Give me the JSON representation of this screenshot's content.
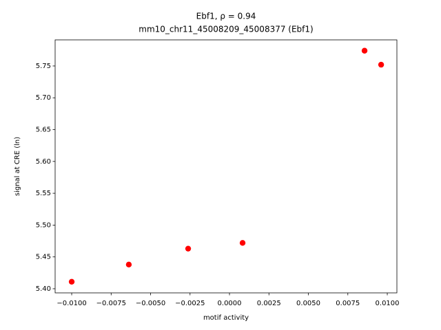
{
  "chart_data": {
    "type": "scatter",
    "title": [
      "Ebf1, ρ = 0.94",
      "mm10_chr11_45008209_45008377 (Ebf1)"
    ],
    "x_label": "motif activity",
    "y_label": "signal at CRE (ln)",
    "color": "#ff0000",
    "x": [
      -0.01,
      -0.00638,
      -0.00262,
      0.00083,
      0.00856,
      0.00961
    ],
    "y": [
      5.411,
      5.438,
      5.463,
      5.472,
      5.774,
      5.752
    ],
    "xlim": [
      -0.01105,
      0.01061
    ],
    "ylim": [
      5.3935,
      5.791
    ],
    "xticks": [
      {
        "value": -0.01,
        "label": "−0.0100"
      },
      {
        "value": -0.0075,
        "label": "−0.0075"
      },
      {
        "value": -0.005,
        "label": "−0.0050"
      },
      {
        "value": -0.0025,
        "label": "−0.0025"
      },
      {
        "value": 0,
        "label": "0.0000"
      },
      0.0025,
      {
        "value": 0.005,
        "label": "0.0050"
      },
      0.0075,
      {
        "value": 0.01,
        "label": "0.0100"
      }
    ],
    "yticks": [
      {
        "value": 5.4,
        "label": "5.40"
      },
      5.45,
      {
        "value": 5.5,
        "label": "5.50"
      },
      5.55,
      {
        "value": 5.6,
        "label": "5.60"
      },
      5.65,
      {
        "value": 5.7,
        "label": "5.70"
      },
      5.75
    ]
  }
}
